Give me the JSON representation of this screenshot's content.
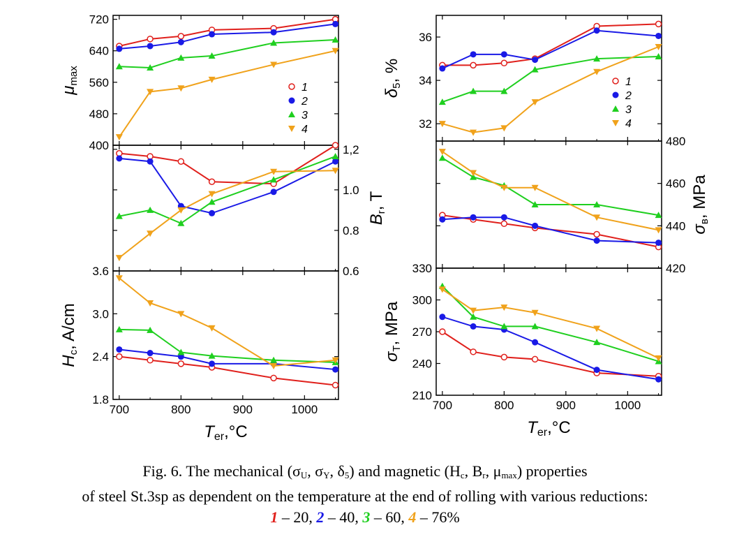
{
  "colors": {
    "s1": "#e0201c",
    "s2": "#1a1ae6",
    "s3": "#1fcf1f",
    "s4": "#f0a21b",
    "axis": "#000000"
  },
  "legend": {
    "items": [
      "1",
      "2",
      "3",
      "4"
    ]
  },
  "x_ticks": [
    "700",
    "800",
    "900",
    "1000"
  ],
  "x_label_left": {
    "main": "T",
    "sub": "er",
    "rest": ",°C"
  },
  "x_label_right": {
    "main": "T",
    "sub": "er",
    "rest": ",°C"
  },
  "chart_data": [
    {
      "type": "line",
      "ylabel": {
        "main": "μ",
        "sub": "max"
      },
      "ylim": [
        400,
        730
      ],
      "y_ticks": [
        "400",
        "480",
        "560",
        "640",
        "720"
      ],
      "x": [
        700,
        750,
        800,
        850,
        950,
        1050
      ],
      "series": [
        {
          "name": "1",
          "values": [
            652,
            670,
            677,
            693,
            697,
            720
          ]
        },
        {
          "name": "2",
          "values": [
            645,
            652,
            662,
            682,
            687,
            708
          ]
        },
        {
          "name": "3",
          "values": [
            600,
            597,
            622,
            627,
            660,
            668
          ]
        },
        {
          "name": "4",
          "values": [
            421,
            536,
            545,
            567,
            605,
            640
          ]
        }
      ]
    },
    {
      "type": "line",
      "ylabel": {
        "main": "B",
        "sub": "r",
        "rest": ", T"
      },
      "ylim": [
        0.6,
        1.22
      ],
      "y_ticks": [
        "0.6",
        "0.8",
        "1.0",
        "1,2"
      ],
      "x": [
        700,
        750,
        800,
        850,
        950,
        1050
      ],
      "series": [
        {
          "name": "1",
          "values": [
            1.18,
            1.165,
            1.14,
            1.04,
            1.03,
            1.22
          ]
        },
        {
          "name": "2",
          "values": [
            1.155,
            1.14,
            0.92,
            0.885,
            0.99,
            1.14
          ]
        },
        {
          "name": "3",
          "values": [
            0.87,
            0.9,
            0.835,
            0.94,
            1.05,
            1.165
          ]
        },
        {
          "name": "4",
          "values": [
            0.665,
            0.785,
            0.9,
            0.98,
            1.09,
            1.095
          ]
        }
      ]
    },
    {
      "type": "line",
      "ylabel": {
        "main": "H",
        "sub": "c",
        "rest": ", A/cm"
      },
      "ylim": [
        1.8,
        3.6
      ],
      "y_ticks": [
        "1.8",
        "2.4",
        "3.0",
        "3.6"
      ],
      "x": [
        700,
        750,
        800,
        850,
        950,
        1050
      ],
      "series": [
        {
          "name": "1",
          "values": [
            2.4,
            2.35,
            2.3,
            2.25,
            2.1,
            2.0
          ]
        },
        {
          "name": "2",
          "values": [
            2.5,
            2.45,
            2.4,
            2.3,
            2.3,
            2.22
          ]
        },
        {
          "name": "3",
          "values": [
            2.78,
            2.77,
            2.46,
            2.41,
            2.35,
            2.32
          ]
        },
        {
          "name": "4",
          "values": [
            3.5,
            3.15,
            3.0,
            2.8,
            2.27,
            2.35
          ]
        }
      ]
    },
    {
      "type": "line",
      "ylabel": {
        "main": "δ",
        "sub": "5",
        "rest": ", %"
      },
      "ylim": [
        31.2,
        37.0
      ],
      "y_ticks": [
        "32",
        "34",
        "36"
      ],
      "x": [
        700,
        750,
        800,
        850,
        950,
        1050
      ],
      "series": [
        {
          "name": "1",
          "values": [
            34.7,
            34.7,
            34.8,
            35.0,
            36.5,
            36.6
          ]
        },
        {
          "name": "2",
          "values": [
            34.55,
            35.2,
            35.2,
            34.95,
            36.3,
            36.05
          ]
        },
        {
          "name": "3",
          "values": [
            33.0,
            33.5,
            33.5,
            34.5,
            35.0,
            35.1
          ]
        },
        {
          "name": "4",
          "values": [
            32.0,
            31.6,
            31.8,
            33.0,
            34.4,
            35.55
          ]
        }
      ]
    },
    {
      "type": "line",
      "ylabel": {
        "main": "σ",
        "sub": "в",
        "rest": ", MPa"
      },
      "ylim": [
        420,
        480
      ],
      "y_ticks": [
        "420",
        "440",
        "460",
        "480"
      ],
      "x": [
        700,
        750,
        800,
        850,
        950,
        1050
      ],
      "series": [
        {
          "name": "1",
          "values": [
            445,
            443,
            441,
            439,
            436,
            430
          ]
        },
        {
          "name": "2",
          "values": [
            443,
            444,
            444,
            440,
            433,
            432
          ]
        },
        {
          "name": "3",
          "values": [
            472,
            463,
            459,
            450,
            450,
            445
          ]
        },
        {
          "name": "4",
          "values": [
            475,
            465,
            458,
            458,
            444,
            438
          ]
        }
      ]
    },
    {
      "type": "line",
      "ylabel": {
        "main": "σ",
        "sub": "T",
        "rest": ", MPa"
      },
      "ylim": [
        210,
        330
      ],
      "y_ticks": [
        "210",
        "240",
        "270",
        "300",
        "330"
      ],
      "x": [
        700,
        750,
        800,
        850,
        950,
        1050
      ],
      "series": [
        {
          "name": "1",
          "values": [
            270,
            251,
            246,
            244,
            231,
            228
          ]
        },
        {
          "name": "2",
          "values": [
            284,
            275,
            272,
            260,
            234,
            225
          ]
        },
        {
          "name": "3",
          "values": [
            313,
            284,
            275,
            275,
            260,
            242
          ]
        },
        {
          "name": "4",
          "values": [
            310,
            290,
            293,
            288,
            273,
            245
          ]
        }
      ]
    }
  ],
  "caption": {
    "line1_a": "Fig. 6. The mechanical (σ",
    "line1_b": "U",
    "line1_c": ", σ",
    "line1_d": "Y",
    "line1_e": ", δ",
    "line1_f": "5",
    "line1_g": ") and magnetic (H",
    "line1_h": "c",
    "line1_i": ", B",
    "line1_j": "r",
    "line1_k": ", μ",
    "line1_l": "max",
    "line1_m": ") properties",
    "line2": "of steel St.3sp as dependent on the temperature at the end of rolling with various reductions:",
    "keys": [
      {
        "num": "1",
        "text": " – 20, "
      },
      {
        "num": "2",
        "text": " – 40, "
      },
      {
        "num": "3",
        "text": " – 60, "
      },
      {
        "num": "4",
        "text": " – 76%"
      }
    ]
  }
}
